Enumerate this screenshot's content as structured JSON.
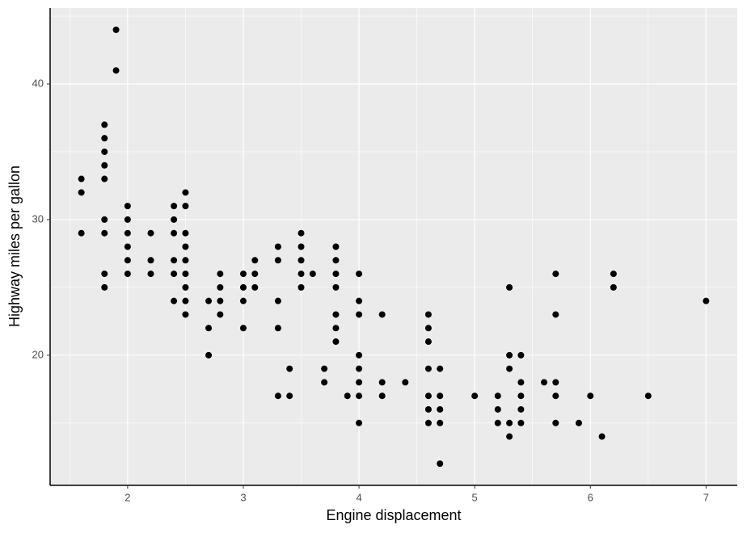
{
  "chart_data": {
    "type": "scatter",
    "x_label": "Engine displacement",
    "y_label": "Highway miles per gallon",
    "x": [
      1.6,
      1.6,
      1.6,
      1.8,
      1.8,
      1.8,
      1.8,
      1.8,
      1.8,
      1.8,
      1.8,
      1.8,
      1.9,
      1.9,
      2.0,
      2.0,
      2.0,
      2.0,
      2.0,
      2.0,
      2.2,
      2.2,
      2.2,
      2.4,
      2.4,
      2.4,
      2.4,
      2.4,
      2.4,
      2.5,
      2.5,
      2.5,
      2.5,
      2.5,
      2.5,
      2.5,
      2.5,
      2.5,
      2.7,
      2.7,
      2.7,
      2.8,
      2.8,
      2.8,
      2.8,
      3.0,
      3.0,
      3.0,
      3.0,
      3.1,
      3.1,
      3.1,
      3.3,
      3.3,
      3.3,
      3.3,
      3.3,
      3.4,
      3.4,
      3.5,
      3.5,
      3.5,
      3.5,
      3.5,
      3.6,
      3.7,
      3.7,
      3.8,
      3.8,
      3.8,
      3.8,
      3.8,
      3.8,
      3.8,
      3.9,
      4.0,
      4.0,
      4.0,
      4.0,
      4.0,
      4.0,
      4.0,
      4.0,
      4.2,
      4.2,
      4.2,
      4.4,
      4.6,
      4.6,
      4.6,
      4.6,
      4.6,
      4.6,
      4.6,
      4.7,
      4.7,
      4.7,
      4.7,
      4.7,
      5.0,
      5.2,
      5.2,
      5.2,
      5.3,
      5.3,
      5.3,
      5.3,
      5.3,
      5.4,
      5.4,
      5.4,
      5.4,
      5.4,
      5.6,
      5.7,
      5.7,
      5.7,
      5.7,
      5.7,
      5.9,
      6.0,
      6.1,
      6.2,
      6.2,
      6.5,
      7.0
    ],
    "values": [
      33,
      32,
      29,
      37,
      36,
      35,
      34,
      33,
      30,
      29,
      26,
      25,
      44,
      41,
      31,
      30,
      29,
      28,
      27,
      26,
      29,
      27,
      26,
      31,
      30,
      29,
      27,
      26,
      24,
      32,
      31,
      29,
      28,
      27,
      26,
      25,
      24,
      23,
      24,
      22,
      20,
      26,
      25,
      24,
      23,
      26,
      25,
      24,
      22,
      27,
      26,
      25,
      28,
      27,
      24,
      22,
      17,
      19,
      17,
      29,
      28,
      27,
      26,
      25,
      26,
      19,
      18,
      28,
      27,
      26,
      25,
      23,
      22,
      21,
      17,
      26,
      24,
      23,
      20,
      19,
      18,
      17,
      15,
      23,
      18,
      17,
      18,
      23,
      22,
      21,
      19,
      17,
      16,
      15,
      19,
      17,
      16,
      15,
      12,
      17,
      17,
      16,
      15,
      25,
      20,
      19,
      15,
      14,
      20,
      18,
      17,
      16,
      15,
      18,
      26,
      23,
      18,
      17,
      15,
      15,
      17,
      14,
      26,
      25,
      17,
      24
    ],
    "color": "#000000",
    "xlim": [
      1.33,
      7.27
    ],
    "xticks": [
      2,
      3,
      4,
      5,
      6,
      7
    ],
    "ylim": [
      10.4,
      45.6
    ],
    "yticks": [
      20,
      30,
      40
    ],
    "grid": true
  }
}
